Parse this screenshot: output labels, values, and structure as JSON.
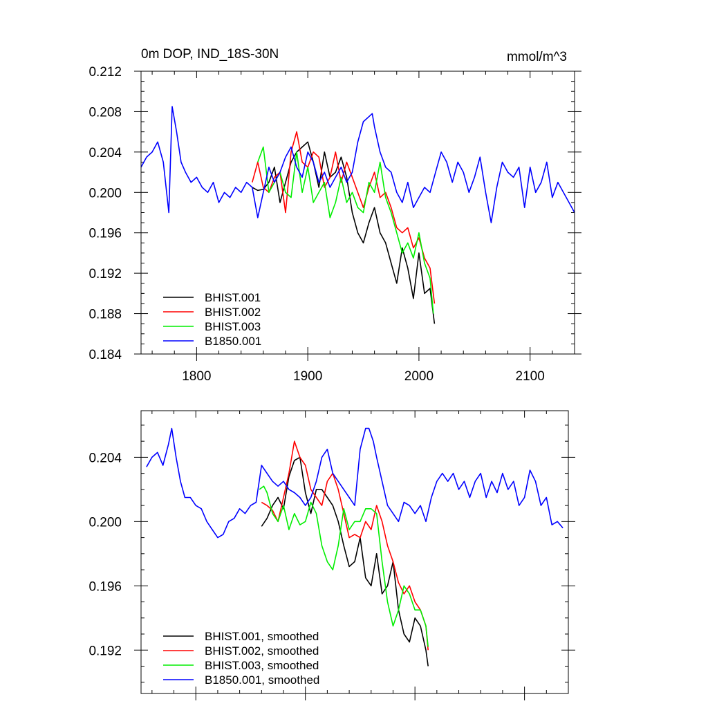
{
  "chart_data": [
    {
      "type": "line",
      "title": "0m DOP, IND_18S-30N",
      "units": "mmol/m^3",
      "xlim": [
        1750,
        2140
      ],
      "ylim": [
        0.184,
        0.212
      ],
      "x_major_ticks": [
        1800,
        1900,
        2000,
        2100
      ],
      "x_tick_labels": [
        "1800",
        "1900",
        "2000",
        "2100"
      ],
      "y_major_ticks": [
        0.184,
        0.188,
        0.192,
        0.196,
        0.2,
        0.204,
        0.208,
        0.212
      ],
      "y_tick_labels": [
        "0.184",
        "0.188",
        "0.192",
        "0.196",
        "0.200",
        "0.204",
        "0.208",
        "0.212"
      ],
      "legend_position": "bottom-left",
      "grid": false,
      "series": [
        {
          "name": "BHIST.001",
          "color": "#000000",
          "x": [
            1850,
            1855,
            1860,
            1865,
            1870,
            1875,
            1880,
            1885,
            1890,
            1895,
            1900,
            1905,
            1910,
            1915,
            1920,
            1925,
            1930,
            1935,
            1940,
            1945,
            1950,
            1955,
            1960,
            1965,
            1970,
            1975,
            1980,
            1985,
            1990,
            1995,
            2000,
            2005,
            2010,
            2014
          ],
          "y": [
            0.2005,
            0.2002,
            0.2003,
            0.201,
            0.2025,
            0.199,
            0.201,
            0.203,
            0.204,
            0.2045,
            0.205,
            0.203,
            0.2005,
            0.204,
            0.2015,
            0.202,
            0.2035,
            0.2015,
            0.198,
            0.196,
            0.195,
            0.197,
            0.1985,
            0.196,
            0.195,
            0.193,
            0.191,
            0.1945,
            0.1925,
            0.1895,
            0.194,
            0.19,
            0.1905,
            0.187
          ]
        },
        {
          "name": "BHIST.002",
          "color": "#ff0000",
          "x": [
            1850,
            1855,
            1860,
            1865,
            1870,
            1875,
            1880,
            1885,
            1890,
            1895,
            1900,
            1905,
            1910,
            1915,
            1920,
            1925,
            1930,
            1935,
            1940,
            1945,
            1950,
            1955,
            1960,
            1965,
            1970,
            1975,
            1980,
            1985,
            1990,
            1995,
            2000,
            2005,
            2010,
            2014
          ],
          "y": [
            0.201,
            0.203,
            0.2005,
            0.2,
            0.2015,
            0.202,
            0.198,
            0.204,
            0.206,
            0.203,
            0.2025,
            0.204,
            0.2035,
            0.2005,
            0.2015,
            0.204,
            0.201,
            0.203,
            0.2015,
            0.2,
            0.1985,
            0.2005,
            0.202,
            0.1995,
            0.2,
            0.1985,
            0.1965,
            0.196,
            0.1965,
            0.1945,
            0.1955,
            0.1935,
            0.1925,
            0.189
          ]
        },
        {
          "name": "BHIST.003",
          "color": "#00ee00",
          "x": [
            1855,
            1860,
            1865,
            1870,
            1875,
            1880,
            1885,
            1890,
            1895,
            1900,
            1905,
            1910,
            1915,
            1920,
            1925,
            1930,
            1935,
            1940,
            1945,
            1950,
            1955,
            1960,
            1965,
            1970,
            1975,
            1980,
            1985,
            1990,
            1995,
            2000,
            2005,
            2010,
            2013
          ],
          "y": [
            0.203,
            0.2045,
            0.2,
            0.201,
            0.202,
            0.2,
            0.1995,
            0.204,
            0.2,
            0.2025,
            0.199,
            0.2,
            0.201,
            0.1975,
            0.199,
            0.2015,
            0.199,
            0.2,
            0.1985,
            0.198,
            0.201,
            0.2,
            0.203,
            0.1995,
            0.198,
            0.196,
            0.194,
            0.195,
            0.1935,
            0.196,
            0.193,
            0.1915,
            0.188
          ]
        },
        {
          "name": "B1850.001",
          "color": "#0000ff",
          "x": [
            1750,
            1755,
            1760,
            1765,
            1770,
            1775,
            1778,
            1782,
            1786,
            1790,
            1795,
            1800,
            1805,
            1810,
            1815,
            1820,
            1825,
            1830,
            1835,
            1840,
            1845,
            1850,
            1855,
            1860,
            1865,
            1870,
            1875,
            1880,
            1885,
            1890,
            1895,
            1900,
            1905,
            1910,
            1915,
            1920,
            1925,
            1930,
            1935,
            1940,
            1945,
            1950,
            1955,
            1958,
            1960,
            1965,
            1970,
            1975,
            1980,
            1985,
            1990,
            1995,
            2000,
            2005,
            2010,
            2015,
            2020,
            2025,
            2030,
            2035,
            2040,
            2045,
            2050,
            2055,
            2060,
            2065,
            2070,
            2075,
            2080,
            2085,
            2090,
            2095,
            2100,
            2105,
            2110,
            2115,
            2120,
            2125,
            2130,
            2135,
            2140
          ],
          "y": [
            0.2025,
            0.2035,
            0.204,
            0.205,
            0.203,
            0.198,
            0.2085,
            0.206,
            0.203,
            0.202,
            0.201,
            0.2015,
            0.2005,
            0.2,
            0.201,
            0.199,
            0.2,
            0.1995,
            0.2005,
            0.2,
            0.201,
            0.2005,
            0.1975,
            0.2,
            0.2025,
            0.201,
            0.202,
            0.2035,
            0.2045,
            0.2025,
            0.2015,
            0.204,
            0.203,
            0.201,
            0.202,
            0.2005,
            0.2015,
            0.2025,
            0.201,
            0.202,
            0.205,
            0.207,
            0.2075,
            0.2078,
            0.2065,
            0.204,
            0.2025,
            0.202,
            0.2,
            0.199,
            0.201,
            0.1985,
            0.1995,
            0.2005,
            0.2,
            0.202,
            0.204,
            0.203,
            0.201,
            0.203,
            0.202,
            0.2,
            0.2015,
            0.2035,
            0.2,
            0.197,
            0.2005,
            0.203,
            0.202,
            0.2015,
            0.2025,
            0.1985,
            0.2025,
            0.2,
            0.201,
            0.203,
            0.1995,
            0.201,
            0.2,
            0.199,
            0.198
          ]
        }
      ]
    },
    {
      "type": "line",
      "xlim": [
        1750,
        2140
      ],
      "ylim": [
        0.1893,
        0.2069
      ],
      "x_major_ticks": [
        1800,
        1900,
        2000,
        2100
      ],
      "y_major_ticks": [
        0.192,
        0.196,
        0.2,
        0.204
      ],
      "y_tick_labels": [
        "0.192",
        "0.196",
        "0.200",
        "0.204"
      ],
      "legend_position": "bottom-left",
      "grid": false,
      "series": [
        {
          "name": "BHIST.001, smoothed",
          "color": "#000000",
          "x": [
            1860,
            1865,
            1870,
            1875,
            1880,
            1885,
            1890,
            1895,
            1900,
            1905,
            1910,
            1915,
            1920,
            1925,
            1930,
            1935,
            1940,
            1945,
            1950,
            1955,
            1960,
            1965,
            1970,
            1975,
            1980,
            1985,
            1990,
            1995,
            2000,
            2005,
            2010,
            2012
          ],
          "y": [
            0.1997,
            0.2002,
            0.201,
            0.2015,
            0.2008,
            0.2028,
            0.2038,
            0.204,
            0.2018,
            0.2005,
            0.202,
            0.202,
            0.2015,
            0.201,
            0.2,
            0.1985,
            0.1972,
            0.1975,
            0.199,
            0.1965,
            0.196,
            0.198,
            0.1955,
            0.196,
            0.1975,
            0.1945,
            0.193,
            0.1925,
            0.194,
            0.1935,
            0.192,
            0.191
          ]
        },
        {
          "name": "BHIST.002, smoothed",
          "color": "#ff0000",
          "x": [
            1860,
            1865,
            1870,
            1875,
            1880,
            1885,
            1890,
            1895,
            1900,
            1905,
            1910,
            1915,
            1920,
            1925,
            1930,
            1935,
            1940,
            1945,
            1950,
            1955,
            1960,
            1965,
            1970,
            1975,
            1980,
            1985,
            1990,
            1995,
            2000,
            2005,
            2010,
            2012
          ],
          "y": [
            0.2012,
            0.201,
            0.2007,
            0.2,
            0.2015,
            0.203,
            0.205,
            0.204,
            0.2035,
            0.202,
            0.2015,
            0.201,
            0.2025,
            0.203,
            0.202,
            0.2005,
            0.199,
            0.1992,
            0.199,
            0.2,
            0.1995,
            0.201,
            0.2,
            0.1985,
            0.1975,
            0.1962,
            0.1955,
            0.196,
            0.195,
            0.1945,
            0.1935,
            0.192
          ]
        },
        {
          "name": "BHIST.003, smoothed",
          "color": "#00ee00",
          "x": [
            1858,
            1862,
            1865,
            1870,
            1875,
            1880,
            1885,
            1890,
            1895,
            1900,
            1905,
            1910,
            1915,
            1920,
            1925,
            1930,
            1935,
            1940,
            1945,
            1950,
            1955,
            1960,
            1965,
            1970,
            1975,
            1980,
            1985,
            1990,
            1995,
            2000,
            2005,
            2010,
            2012
          ],
          "y": [
            0.202,
            0.2022,
            0.2018,
            0.2005,
            0.2,
            0.201,
            0.1995,
            0.2005,
            0.1998,
            0.2,
            0.2012,
            0.2005,
            0.1985,
            0.1975,
            0.197,
            0.1985,
            0.2008,
            0.1995,
            0.2,
            0.2,
            0.2008,
            0.2008,
            0.2005,
            0.1975,
            0.195,
            0.1935,
            0.1945,
            0.196,
            0.1955,
            0.1945,
            0.1945,
            0.1935,
            0.1922
          ]
        },
        {
          "name": "B1850.001, smoothed",
          "color": "#0000ff",
          "x": [
            1755,
            1760,
            1765,
            1770,
            1775,
            1778,
            1782,
            1786,
            1790,
            1795,
            1800,
            1805,
            1810,
            1815,
            1820,
            1825,
            1830,
            1835,
            1840,
            1845,
            1850,
            1855,
            1860,
            1865,
            1870,
            1875,
            1880,
            1885,
            1890,
            1895,
            1900,
            1905,
            1910,
            1915,
            1920,
            1925,
            1930,
            1935,
            1940,
            1945,
            1950,
            1955,
            1958,
            1962,
            1965,
            1970,
            1975,
            1980,
            1985,
            1990,
            1995,
            2000,
            2005,
            2010,
            2015,
            2020,
            2025,
            2030,
            2035,
            2040,
            2045,
            2050,
            2055,
            2060,
            2065,
            2070,
            2075,
            2080,
            2085,
            2090,
            2095,
            2100,
            2105,
            2110,
            2115,
            2120,
            2125,
            2130,
            2135
          ],
          "y": [
            0.2034,
            0.204,
            0.2043,
            0.2035,
            0.2048,
            0.2058,
            0.204,
            0.2025,
            0.2015,
            0.2015,
            0.201,
            0.2008,
            0.2,
            0.1995,
            0.199,
            0.1992,
            0.2,
            0.2002,
            0.2008,
            0.2005,
            0.201,
            0.2012,
            0.2035,
            0.203,
            0.2025,
            0.2022,
            0.2025,
            0.202,
            0.2018,
            0.2015,
            0.201,
            0.2015,
            0.2025,
            0.204,
            0.2045,
            0.203,
            0.2025,
            0.202,
            0.2015,
            0.201,
            0.2045,
            0.2058,
            0.2058,
            0.205,
            0.204,
            0.2025,
            0.201,
            0.2005,
            0.2,
            0.2012,
            0.201,
            0.2005,
            0.201,
            0.2,
            0.2015,
            0.2025,
            0.203,
            0.2025,
            0.203,
            0.202,
            0.2025,
            0.2015,
            0.2025,
            0.203,
            0.2015,
            0.2025,
            0.2018,
            0.203,
            0.202,
            0.2025,
            0.201,
            0.2015,
            0.2032,
            0.2025,
            0.201,
            0.2015,
            0.1998,
            0.2,
            0.1996
          ]
        }
      ]
    }
  ]
}
